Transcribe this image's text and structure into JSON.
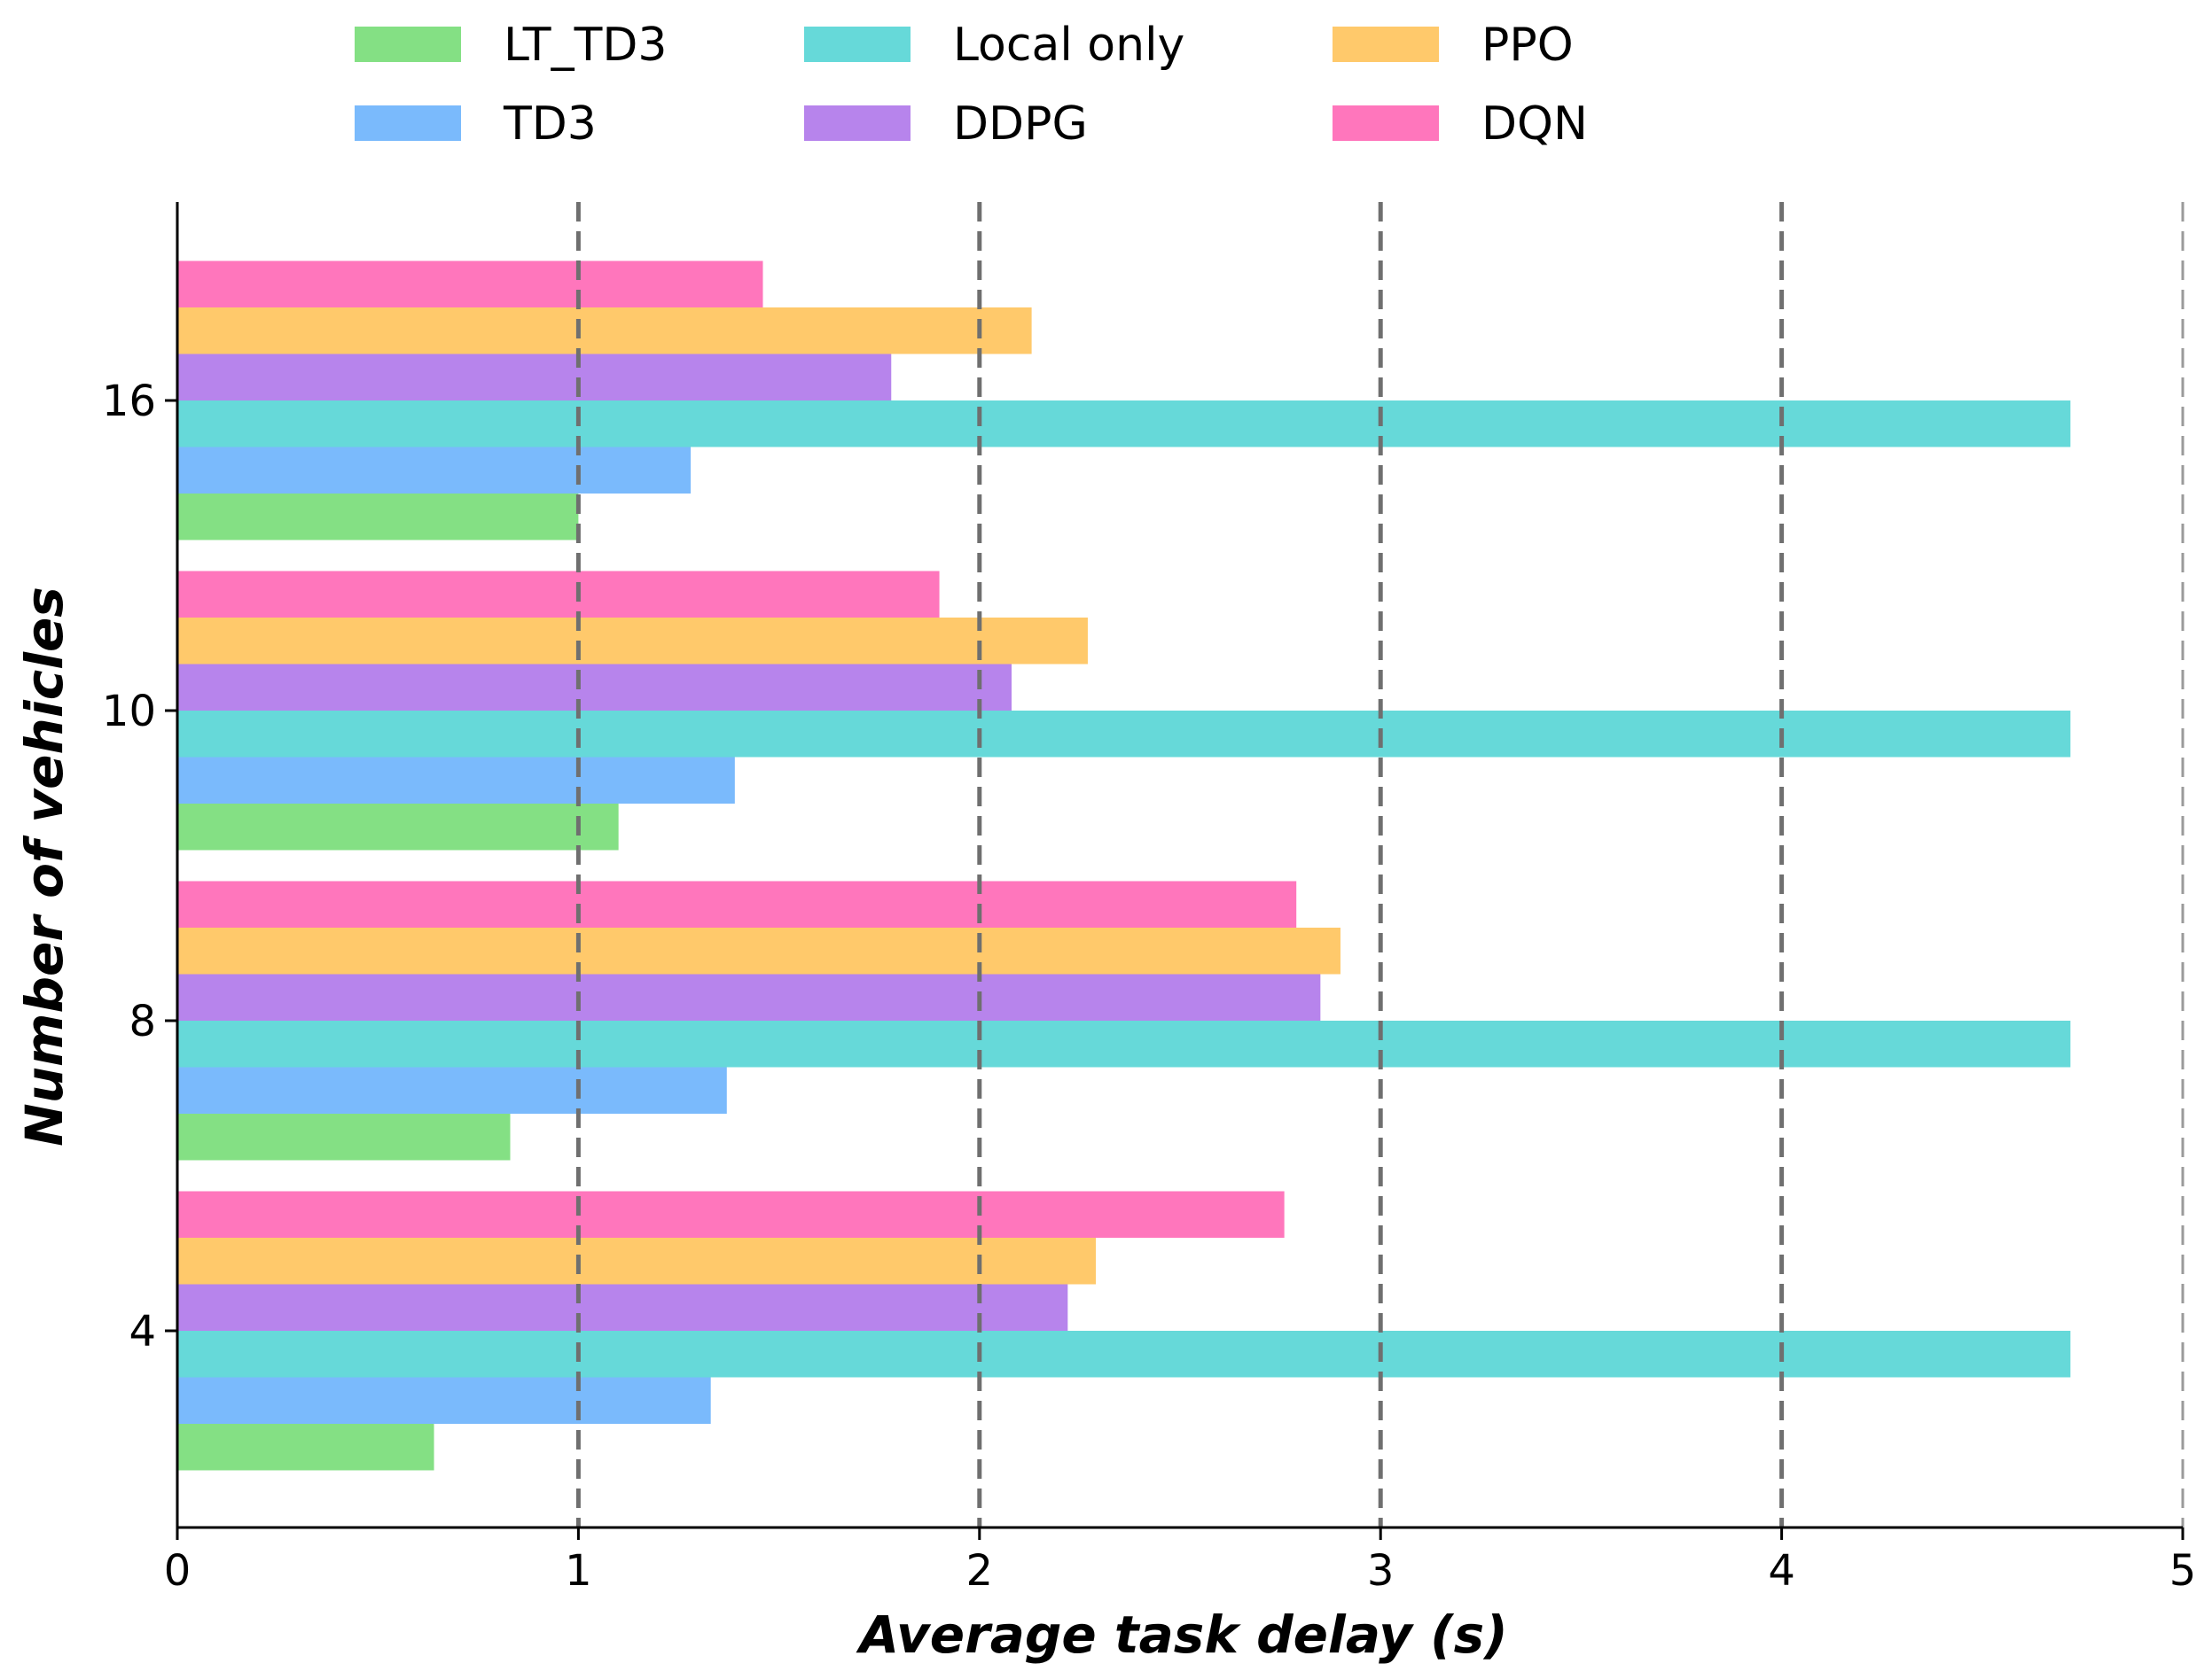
{
  "chart_data": {
    "type": "bar",
    "orientation": "horizontal",
    "title": "",
    "xlabel": "Average task delay (s)",
    "ylabel": "Number of vehicles",
    "xlim": [
      0,
      5
    ],
    "xticks": [
      0,
      1,
      2,
      3,
      4,
      5
    ],
    "categories": [
      "4",
      "8",
      "10",
      "16"
    ],
    "grid": "vertical dashed lines at x ticks",
    "legend_position": "top-center",
    "series": [
      {
        "name": "LT_TD3",
        "color": "#84E084",
        "values": [
          0.64,
          0.83,
          1.1,
          1.0
        ]
      },
      {
        "name": "TD3",
        "color": "#7ABAFC",
        "values": [
          1.33,
          1.37,
          1.39,
          1.28
        ]
      },
      {
        "name": "Local only",
        "color": "#66D9D9",
        "values": [
          4.72,
          4.72,
          4.72,
          4.72
        ]
      },
      {
        "name": "DDPG",
        "color": "#B784EC",
        "values": [
          2.22,
          2.85,
          2.08,
          1.78
        ]
      },
      {
        "name": "PPO",
        "color": "#FFC96B",
        "values": [
          2.29,
          2.9,
          2.27,
          2.13
        ]
      },
      {
        "name": "DQN",
        "color": "#FF76BC",
        "values": [
          2.76,
          2.79,
          1.9,
          1.46
        ]
      }
    ]
  }
}
